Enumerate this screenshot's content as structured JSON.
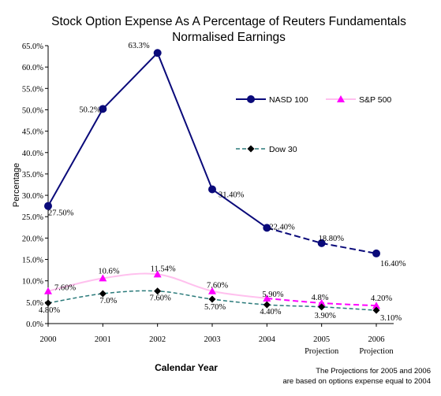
{
  "chart_data": {
    "type": "line",
    "title_lines": [
      "Stock Option Expense As A Percentage of Reuters Fundamentals",
      "Normalised Earnings"
    ],
    "xlabel": "Calendar Year",
    "ylabel": "Percentage",
    "ylim": [
      0,
      65
    ],
    "y_ticks": [
      "0.0%",
      "5.0%",
      "10.0%",
      "15.0%",
      "20.0%",
      "25.0%",
      "30.0%",
      "35.0%",
      "40.0%",
      "45.0%",
      "50.0%",
      "55.0%",
      "60.0%",
      "65.0%"
    ],
    "categories": [
      {
        "line1": "2000",
        "line2": ""
      },
      {
        "line1": "2001",
        "line2": ""
      },
      {
        "line1": "2002",
        "line2": ""
      },
      {
        "line1": "2003",
        "line2": ""
      },
      {
        "line1": "2004",
        "line2": ""
      },
      {
        "line1": "2005",
        "line2": "Projection"
      },
      {
        "line1": "2006",
        "line2": "Projection"
      }
    ],
    "grid": false,
    "legend_position": "right",
    "series": [
      {
        "name": "NASD 100",
        "color": "#0a0a7a",
        "marker": "circle",
        "values": [
          27.5,
          50.2,
          63.3,
          31.4,
          22.4,
          18.8,
          16.4
        ],
        "labels": [
          "27.50%",
          "50.2%",
          "63.3%",
          "31.40%",
          "22.40%",
          "18.80%",
          "16.40%"
        ]
      },
      {
        "name": "S&P 500",
        "color": "#ff00ff",
        "line_color": "#ffc0ee",
        "marker": "triangle",
        "values": [
          7.6,
          10.6,
          11.54,
          7.6,
          5.9,
          4.8,
          4.2
        ],
        "labels": [
          "7.60%",
          "10.6%",
          "11.54%",
          "7.60%",
          "5.90%",
          "4.8%",
          "4.20%"
        ]
      },
      {
        "name": "Dow 30",
        "color": "#000000",
        "line_color": "#2a7a7a",
        "marker": "diamond",
        "values": [
          4.8,
          7.0,
          7.6,
          5.7,
          4.4,
          3.9,
          3.1
        ],
        "labels": [
          "4.80%",
          "7.0%",
          "7.60%",
          "5.70%",
          "4.40%",
          "3.90%",
          "3.10%"
        ]
      }
    ],
    "footnote_lines": [
      "The Projections for 2005 and 2006",
      "are based on options expense equal to 2004"
    ]
  }
}
